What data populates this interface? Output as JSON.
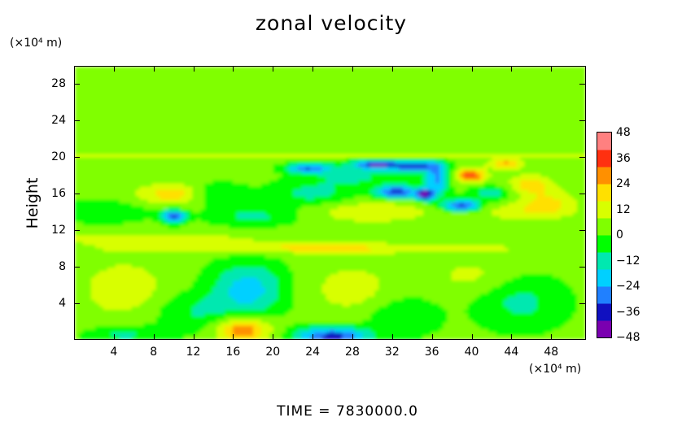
{
  "chart_data": {
    "type": "heatmap",
    "title": "zonal velocity",
    "xlabel": "",
    "ylabel": "Height",
    "x_unit_label": "(×10⁴ m)",
    "y_unit_label": "(×10⁴ m)",
    "footer": "TIME  =  7830000.0",
    "xlim": [
      0,
      51.5
    ],
    "ylim": [
      0,
      30
    ],
    "x_ticks": [
      4,
      8,
      12,
      16,
      20,
      24,
      28,
      32,
      36,
      40,
      44,
      48
    ],
    "x_tick_labels": [
      "4",
      "8",
      "12",
      "16",
      "20",
      "24",
      "28",
      "32",
      "36",
      "40",
      "44",
      "48"
    ],
    "y_ticks": [
      4,
      8,
      12,
      16,
      20,
      24,
      28
    ],
    "y_tick_labels": [
      "4",
      "8",
      "12",
      "16",
      "20",
      "24",
      "28"
    ],
    "colorbar": {
      "levels": [
        48,
        36,
        24,
        12,
        0,
        -12,
        -24,
        -36,
        -48
      ],
      "labels": [
        "48",
        "36",
        "24",
        "12",
        "0",
        "−12",
        "−24",
        "−36",
        "−48"
      ],
      "range": [
        -48,
        48
      ],
      "colors": [
        "#7a00b0",
        "#1010c0",
        "#2080ff",
        "#00d0ff",
        "#00e8b0",
        "#00ff00",
        "#80ff00",
        "#d8ff00",
        "#ffe000",
        "#ff9000",
        "#ff3010",
        "#ff8080"
      ]
    },
    "background_value": 2,
    "features": [
      {
        "x": 17,
        "y": 1,
        "sx": 1.8,
        "sy": 1.0,
        "value": 30
      },
      {
        "x": 26,
        "y": 0.3,
        "sx": 2.5,
        "sy": 0.7,
        "value": -38
      },
      {
        "x": 5,
        "y": 0.5,
        "sx": 2.5,
        "sy": 0.7,
        "value": -12
      },
      {
        "x": 17.5,
        "y": 5.5,
        "sx": 2.5,
        "sy": 2.0,
        "value": -22
      },
      {
        "x": 5,
        "y": 5.5,
        "sx": 3,
        "sy": 2.2,
        "value": 12
      },
      {
        "x": 28,
        "y": 5.5,
        "sx": 3,
        "sy": 2,
        "value": 10
      },
      {
        "x": 45,
        "y": 4,
        "sx": 3,
        "sy": 2,
        "value": -12
      },
      {
        "x": 40,
        "y": 7,
        "sx": 3,
        "sy": 1.5,
        "value": 8
      },
      {
        "x": 12,
        "y": 3,
        "sx": 3,
        "sy": 1.5,
        "value": -10
      },
      {
        "x": 33,
        "y": 2.5,
        "sx": 2.5,
        "sy": 1.5,
        "value": -10
      },
      {
        "x": 24,
        "y": 10,
        "sx": 14,
        "sy": 0.4,
        "value": 16
      },
      {
        "x": 8,
        "y": 11,
        "sx": 8,
        "sy": 0.4,
        "value": 12
      },
      {
        "x": 10,
        "y": 13.5,
        "sx": 0.8,
        "sy": 0.5,
        "value": -36
      },
      {
        "x": 10,
        "y": 16,
        "sx": 2.5,
        "sy": 0.8,
        "value": 20
      },
      {
        "x": 14,
        "y": 16,
        "sx": 2,
        "sy": 0.8,
        "value": -14
      },
      {
        "x": 24,
        "y": 16,
        "sx": 3,
        "sy": 1,
        "value": -12
      },
      {
        "x": 30.5,
        "y": 19.2,
        "sx": 1.6,
        "sy": 0.35,
        "value": -40
      },
      {
        "x": 23.5,
        "y": 18.8,
        "sx": 1.5,
        "sy": 0.35,
        "value": -32
      },
      {
        "x": 32.5,
        "y": 16.2,
        "sx": 1.4,
        "sy": 0.5,
        "value": -38
      },
      {
        "x": 35.3,
        "y": 15.9,
        "sx": 0.6,
        "sy": 0.45,
        "value": -44
      },
      {
        "x": 34.5,
        "y": 19,
        "sx": 1.8,
        "sy": 0.4,
        "value": -34
      },
      {
        "x": 36.5,
        "y": 17.5,
        "sx": 0.8,
        "sy": 1.2,
        "value": -28
      },
      {
        "x": 39,
        "y": 14.7,
        "sx": 1.3,
        "sy": 0.45,
        "value": -38
      },
      {
        "x": 40,
        "y": 18,
        "sx": 1,
        "sy": 0.5,
        "value": 36
      },
      {
        "x": 43.5,
        "y": 19.3,
        "sx": 1.2,
        "sy": 0.4,
        "value": 24
      },
      {
        "x": 42,
        "y": 16,
        "sx": 1.5,
        "sy": 0.6,
        "value": -14
      },
      {
        "x": 46,
        "y": 17,
        "sx": 1.5,
        "sy": 0.8,
        "value": 18
      },
      {
        "x": 18,
        "y": 13.5,
        "sx": 3,
        "sy": 0.7,
        "value": -12
      },
      {
        "x": 30,
        "y": 14,
        "sx": 4,
        "sy": 0.8,
        "value": 14
      },
      {
        "x": 45,
        "y": 14,
        "sx": 3,
        "sy": 0.8,
        "value": 10
      },
      {
        "x": 3,
        "y": 14,
        "sx": 3,
        "sy": 0.8,
        "value": -10
      },
      {
        "x": 28,
        "y": 18,
        "sx": 3,
        "sy": 0.8,
        "value": -12
      },
      {
        "x": 20,
        "y": 20.2,
        "sx": 25,
        "sy": 0.12,
        "value": 14
      },
      {
        "x": 48,
        "y": 15,
        "sx": 2,
        "sy": 1,
        "value": 14
      }
    ]
  }
}
